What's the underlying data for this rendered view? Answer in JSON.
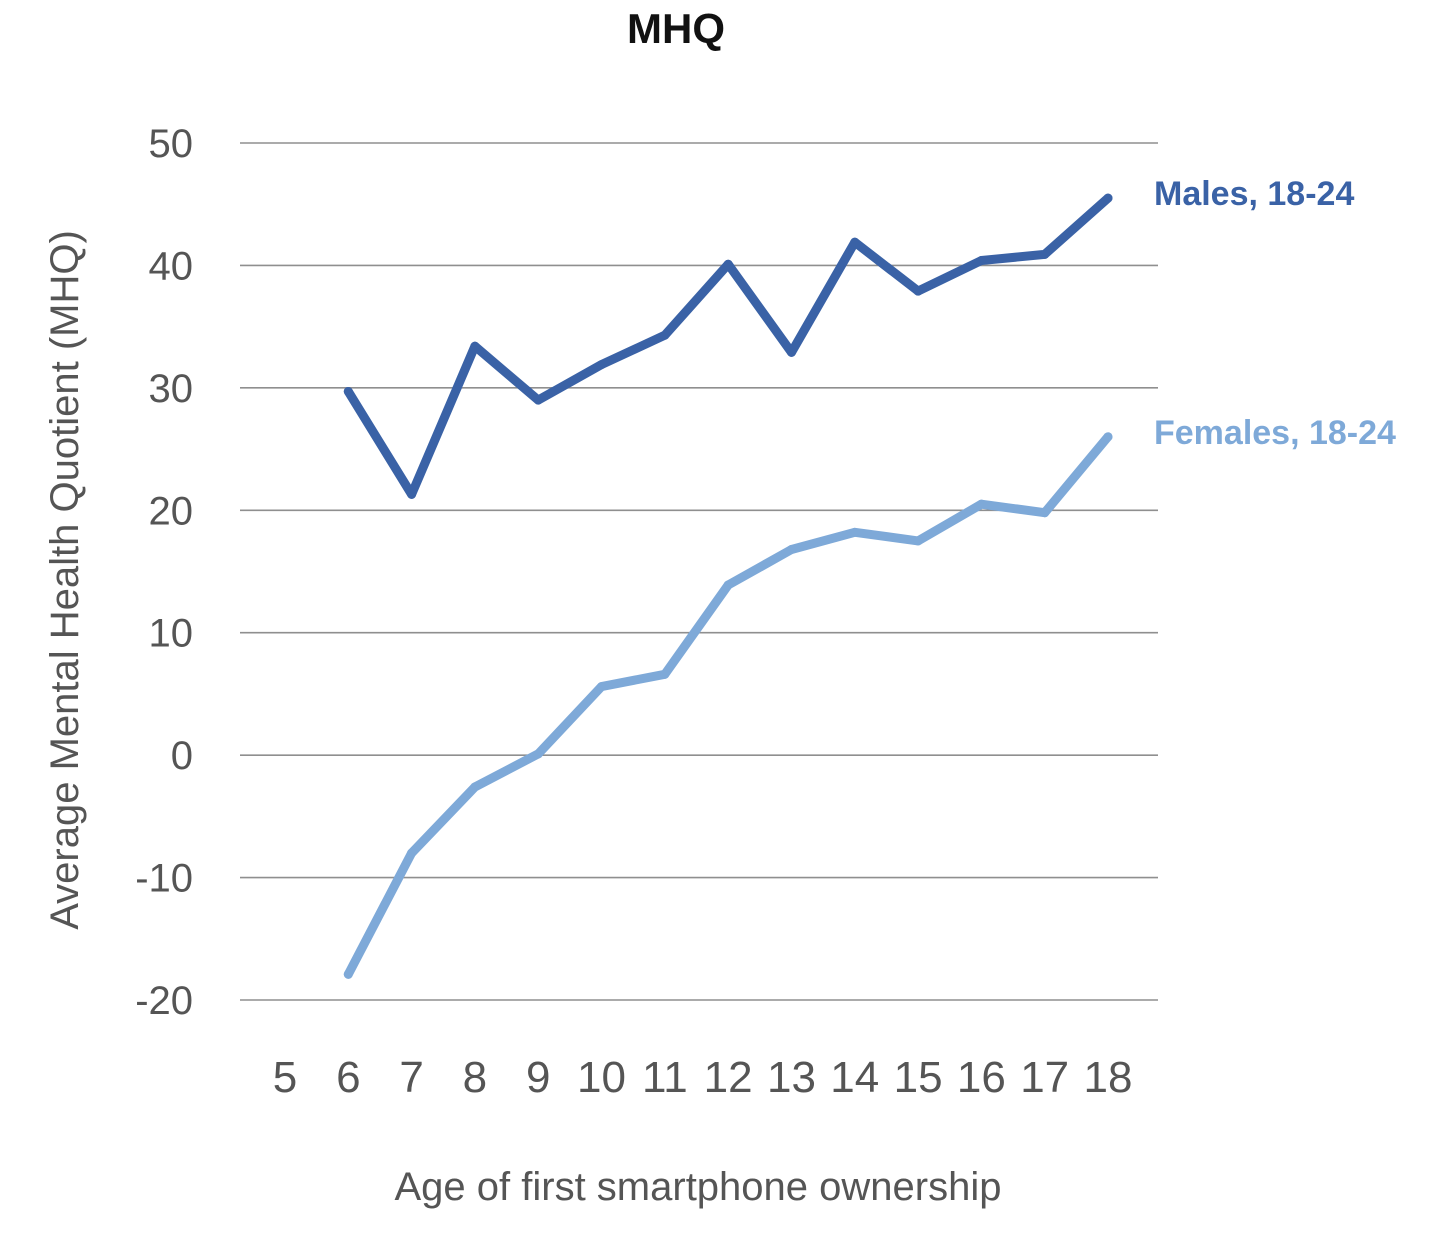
{
  "chart_data": {
    "type": "line",
    "title": "MHQ",
    "xlabel": "Age of first smartphone ownership",
    "ylabel": "Average Mental Health Quotient (MHQ)",
    "x_categories": [
      "5",
      "6",
      "7",
      "8",
      "9",
      "10",
      "11",
      "12",
      "13",
      "14",
      "15",
      "16",
      "17",
      "18"
    ],
    "ylim": [
      -20,
      50
    ],
    "yticks": [
      50,
      40,
      30,
      20,
      10,
      0,
      -10,
      -20
    ],
    "ytick_labels": [
      "50",
      "40",
      "30",
      "20",
      "10",
      "0",
      "-10",
      "-20"
    ],
    "grid": true,
    "series": [
      {
        "name": "Males, 18-24",
        "color": "#3a62a6",
        "x": [
          6,
          7,
          8,
          9,
          10,
          11,
          12,
          13,
          14,
          15,
          16,
          17,
          18
        ],
        "y": [
          29.7,
          21.3,
          33.4,
          29.0,
          31.9,
          34.3,
          40.1,
          32.9,
          41.9,
          37.9,
          40.4,
          40.9,
          45.5
        ]
      },
      {
        "name": "Females, 18-24",
        "color": "#7ea9d8",
        "x": [
          6,
          7,
          8,
          9,
          10,
          11,
          12,
          13,
          14,
          15,
          16,
          17,
          18
        ],
        "y": [
          -17.9,
          -8.0,
          -2.6,
          0.1,
          5.6,
          6.6,
          13.9,
          16.8,
          18.2,
          17.5,
          20.5,
          19.8,
          26.0
        ]
      }
    ]
  }
}
